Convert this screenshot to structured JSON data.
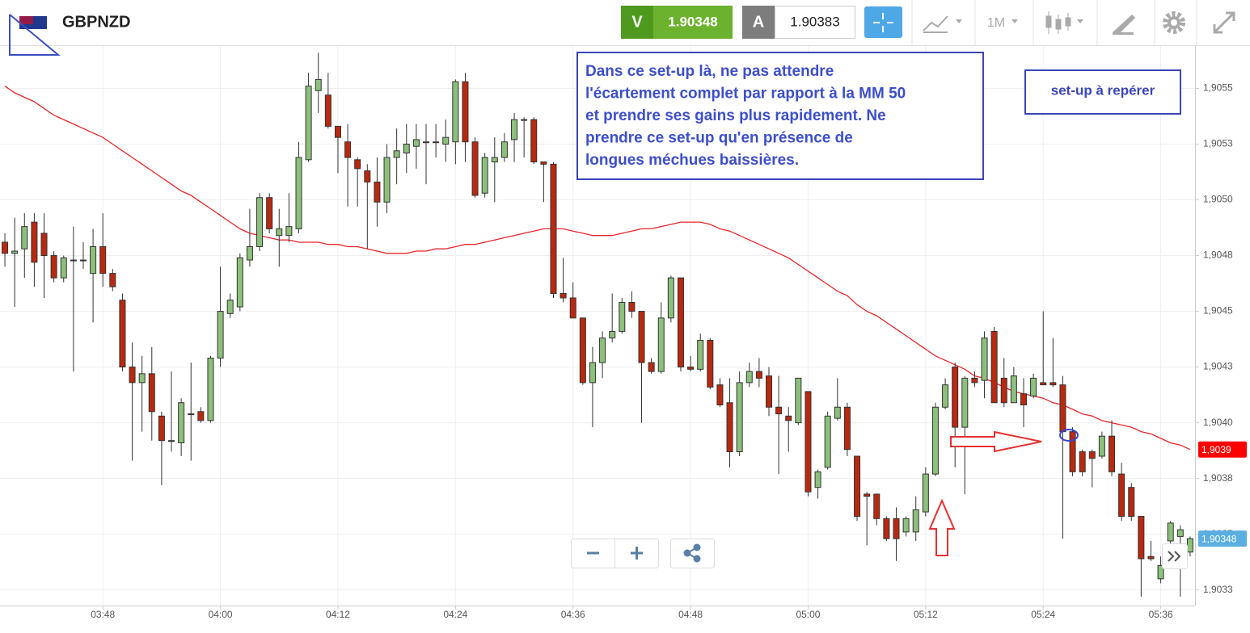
{
  "toolbar": {
    "symbol": "GBPNZD",
    "sell_label": "V",
    "sell_price": "1.90348",
    "buy_label": "A",
    "buy_price": "1.90383",
    "timeframe": "1M"
  },
  "annotations": {
    "note_lines": [
      "Dans ce set-up là, ne pas attendre",
      "l'écartement complet par rapport à la MM 50",
      "et prendre ses gains plus rapidement. Ne",
      "prendre ce set-up  qu'en présence de",
      "longues méchues baissières."
    ],
    "setup_label": "set-up à repérer"
  },
  "chart_data": {
    "type": "candlestick",
    "up_color": "#8cc07c",
    "down_color": "#b8290f",
    "grid": true,
    "x": [
      "03:38",
      "03:39",
      "03:40",
      "03:41",
      "03:42",
      "03:43",
      "03:44",
      "03:45",
      "03:46",
      "03:47",
      "03:48",
      "03:49",
      "03:50",
      "03:51",
      "03:52",
      "03:53",
      "03:54",
      "03:55",
      "03:56",
      "03:57",
      "03:58",
      "03:59",
      "04:00",
      "04:01",
      "04:02",
      "04:03",
      "04:04",
      "04:05",
      "04:06",
      "04:07",
      "04:08",
      "04:09",
      "04:10",
      "04:11",
      "04:12",
      "04:13",
      "04:14",
      "04:15",
      "04:16",
      "04:17",
      "04:18",
      "04:19",
      "04:20",
      "04:21",
      "04:22",
      "04:23",
      "04:24",
      "04:25",
      "04:26",
      "04:27",
      "04:28",
      "04:29",
      "04:30",
      "04:31",
      "04:32",
      "04:33",
      "04:34",
      "04:35",
      "04:36",
      "04:37",
      "04:38",
      "04:39",
      "04:40",
      "04:41",
      "04:42",
      "04:43",
      "04:44",
      "04:45",
      "04:46",
      "04:47",
      "04:48",
      "04:49",
      "04:50",
      "04:51",
      "04:52",
      "04:53",
      "04:54",
      "04:55",
      "04:56",
      "04:57",
      "04:58",
      "04:59",
      "05:00",
      "05:01",
      "05:02",
      "05:03",
      "05:04",
      "05:05",
      "05:06",
      "05:07",
      "05:08",
      "05:09",
      "05:10",
      "05:11",
      "05:12",
      "05:13",
      "05:14",
      "05:15",
      "05:16",
      "05:17",
      "05:18",
      "05:19",
      "05:20",
      "05:21",
      "05:22",
      "05:23",
      "05:24",
      "05:25",
      "05:26",
      "05:27",
      "05:28",
      "05:29",
      "05:30",
      "05:31",
      "05:32",
      "05:33",
      "05:34",
      "05:35",
      "05:36",
      "05:37",
      "05:38",
      "05:39"
    ],
    "xticks": [
      "03:48",
      "04:00",
      "04:12",
      "04:24",
      "04:36",
      "04:48",
      "05:00",
      "05:12",
      "05:24",
      "05:36"
    ],
    "ylim": [
      1.90318,
      1.90569
    ],
    "yticks": [
      {
        "value": 1.9055,
        "label": "1,9055"
      },
      {
        "value": 1.90525,
        "label": "1,9053"
      },
      {
        "value": 1.905,
        "label": "1,9050"
      },
      {
        "value": 1.90475,
        "label": "1,9048"
      },
      {
        "value": 1.9045,
        "label": "1,9045"
      },
      {
        "value": 1.90425,
        "label": "1,9043"
      },
      {
        "value": 1.904,
        "label": "1,9040"
      },
      {
        "value": 1.90375,
        "label": "1,9038"
      },
      {
        "value": 1.9035,
        "label": "1,9035"
      },
      {
        "value": 1.90325,
        "label": "1,9033"
      }
    ],
    "ohlc": [
      [
        1.90481,
        1.90485,
        1.9047,
        1.90476
      ],
      [
        1.90476,
        1.90492,
        1.90452,
        1.90477
      ],
      [
        1.90478,
        1.90494,
        1.90465,
        1.90488
      ],
      [
        1.9049,
        1.90494,
        1.90461,
        1.90472
      ],
      [
        1.90485,
        1.90494,
        1.90456,
        1.90475
      ],
      [
        1.90475,
        1.90477,
        1.90463,
        1.90465
      ],
      [
        1.90465,
        1.90475,
        1.90463,
        1.90474
      ],
      [
        1.90473,
        1.90488,
        1.90423,
        1.90473
      ],
      [
        1.90473,
        1.90481,
        1.90469,
        1.90473
      ],
      [
        1.90467,
        1.90487,
        1.90445,
        1.90479
      ],
      [
        1.90479,
        1.90494,
        1.90461,
        1.90467
      ],
      [
        1.90467,
        1.90469,
        1.90459,
        1.90461
      ],
      [
        1.90455,
        1.90458,
        1.90423,
        1.90425
      ],
      [
        1.90425,
        1.90436,
        1.90383,
        1.90418
      ],
      [
        1.90418,
        1.9043,
        1.90396,
        1.90422
      ],
      [
        1.90422,
        1.90434,
        1.90392,
        1.90405
      ],
      [
        1.90403,
        1.90405,
        1.90372,
        1.90392
      ],
      [
        1.90392,
        1.90423,
        1.90387,
        1.90392
      ],
      [
        1.90391,
        1.90411,
        1.90385,
        1.90409
      ],
      [
        1.90404,
        1.90427,
        1.90383,
        1.90404
      ],
      [
        1.90405,
        1.90407,
        1.904,
        1.90401
      ],
      [
        1.90401,
        1.9043,
        1.904,
        1.90429
      ],
      [
        1.90429,
        1.9047,
        1.90425,
        1.9045
      ],
      [
        1.90449,
        1.90458,
        1.90447,
        1.90455
      ],
      [
        1.90452,
        1.90476,
        1.9045,
        1.90474
      ],
      [
        1.90473,
        1.90496,
        1.9047,
        1.90479
      ],
      [
        1.90479,
        1.90503,
        1.90477,
        1.90501
      ],
      [
        1.90501,
        1.90503,
        1.90485,
        1.90487
      ],
      [
        1.90484,
        1.90496,
        1.9047,
        1.90487
      ],
      [
        1.90484,
        1.90503,
        1.90481,
        1.90488
      ],
      [
        1.90487,
        1.90526,
        1.90485,
        1.90519
      ],
      [
        1.90518,
        1.90557,
        1.90517,
        1.90551
      ],
      [
        1.90549,
        1.90566,
        1.90539,
        1.90554
      ],
      [
        1.90547,
        1.90557,
        1.90532,
        1.90533
      ],
      [
        1.90533,
        1.90533,
        1.90512,
        1.90528
      ],
      [
        1.90526,
        1.90534,
        1.90497,
        1.90519
      ],
      [
        1.90518,
        1.90519,
        1.90497,
        1.90514
      ],
      [
        1.90513,
        1.90516,
        1.90478,
        1.90508
      ],
      [
        1.90508,
        1.90519,
        1.90488,
        1.90499
      ],
      [
        1.90499,
        1.90525,
        1.90494,
        1.90519
      ],
      [
        1.90519,
        1.90532,
        1.90507,
        1.90522
      ],
      [
        1.90521,
        1.90534,
        1.90512,
        1.90525
      ],
      [
        1.90524,
        1.90534,
        1.90514,
        1.90527
      ],
      [
        1.90526,
        1.90534,
        1.90507,
        1.90526
      ],
      [
        1.90526,
        1.90534,
        1.90519,
        1.90526
      ],
      [
        1.90525,
        1.90536,
        1.90517,
        1.90528
      ],
      [
        1.90526,
        1.90554,
        1.90516,
        1.90553
      ],
      [
        1.90553,
        1.90557,
        1.90517,
        1.90526
      ],
      [
        1.90526,
        1.90528,
        1.90501,
        1.90502
      ],
      [
        1.90503,
        1.90521,
        1.90501,
        1.90519
      ],
      [
        1.90517,
        1.90528,
        1.90499,
        1.90519
      ],
      [
        1.90519,
        1.9053,
        1.90517,
        1.90526
      ],
      [
        1.90527,
        1.90539,
        1.90517,
        1.90536
      ],
      [
        1.90536,
        1.90537,
        1.90519,
        1.90536
      ],
      [
        1.90536,
        1.90537,
        1.90516,
        1.90517
      ],
      [
        1.90517,
        1.90517,
        1.90499,
        1.90516
      ],
      [
        1.90516,
        1.90517,
        1.90456,
        1.90458
      ],
      [
        1.90458,
        1.90474,
        1.90454,
        1.90456
      ],
      [
        1.90456,
        1.90463,
        1.90447,
        1.90447
      ],
      [
        1.90447,
        1.90447,
        1.90417,
        1.90418
      ],
      [
        1.90418,
        1.90434,
        1.90398,
        1.90427
      ],
      [
        1.90427,
        1.90441,
        1.9042,
        1.90438
      ],
      [
        1.90438,
        1.90458,
        1.90436,
        1.90441
      ],
      [
        1.90441,
        1.90456,
        1.9044,
        1.90454
      ],
      [
        1.90454,
        1.90459,
        1.90447,
        1.9045
      ],
      [
        1.9045,
        1.9045,
        1.904,
        1.90427
      ],
      [
        1.90427,
        1.90429,
        1.90422,
        1.90423
      ],
      [
        1.90423,
        1.90454,
        1.90422,
        1.90447
      ],
      [
        1.90447,
        1.90466,
        1.90445,
        1.90465
      ],
      [
        1.90465,
        1.90465,
        1.90423,
        1.90425
      ],
      [
        1.90425,
        1.9043,
        1.90423,
        1.90424
      ],
      [
        1.90424,
        1.9044,
        1.90423,
        1.90437
      ],
      [
        1.90437,
        1.90438,
        1.90415,
        1.90416
      ],
      [
        1.90417,
        1.9042,
        1.90407,
        1.90408
      ],
      [
        1.90409,
        1.9042,
        1.9038,
        1.90387
      ],
      [
        1.90387,
        1.90423,
        1.90385,
        1.90418
      ],
      [
        1.90418,
        1.90427,
        1.90416,
        1.90423
      ],
      [
        1.90423,
        1.90429,
        1.90416,
        1.9042
      ],
      [
        1.90421,
        1.90425,
        1.90403,
        1.90407
      ],
      [
        1.90407,
        1.90421,
        1.90377,
        1.90404
      ],
      [
        1.90403,
        1.90407,
        1.90387,
        1.90401
      ],
      [
        1.904,
        1.9042,
        1.90399,
        1.9042
      ],
      [
        1.90414,
        1.90414,
        1.90367,
        1.90369
      ],
      [
        1.90371,
        1.90379,
        1.90366,
        1.90378
      ],
      [
        1.9038,
        1.90405,
        1.90379,
        1.90403
      ],
      [
        1.90402,
        1.9042,
        1.90401,
        1.90407
      ],
      [
        1.90407,
        1.90409,
        1.90385,
        1.90388
      ],
      [
        1.90385,
        1.90385,
        1.90356,
        1.90358
      ],
      [
        1.90368,
        1.90369,
        1.90345,
        1.90367
      ],
      [
        1.90368,
        1.90368,
        1.90354,
        1.90357
      ],
      [
        1.90357,
        1.90358,
        1.90347,
        1.90348
      ],
      [
        1.90357,
        1.90362,
        1.90338,
        1.90348
      ],
      [
        1.90351,
        1.90358,
        1.90349,
        1.90357
      ],
      [
        1.90351,
        1.90367,
        1.90347,
        1.90361
      ],
      [
        1.9036,
        1.9038,
        1.90358,
        1.90377
      ],
      [
        1.90377,
        1.90409,
        1.90376,
        1.90407
      ],
      [
        1.90407,
        1.9042,
        1.90406,
        1.90417
      ],
      [
        1.90425,
        1.90427,
        1.9038,
        1.90398
      ],
      [
        1.90398,
        1.90421,
        1.90368,
        1.9042
      ],
      [
        1.9042,
        1.90423,
        1.90416,
        1.90418
      ],
      [
        1.90419,
        1.90441,
        1.90411,
        1.90438
      ],
      [
        1.90441,
        1.90443,
        1.90409,
        1.90409
      ],
      [
        1.9042,
        1.90429,
        1.90407,
        1.90409
      ],
      [
        1.90409,
        1.90425,
        1.90409,
        1.90421
      ],
      [
        1.90413,
        1.9042,
        1.90398,
        1.90408
      ],
      [
        1.90412,
        1.90422,
        1.90411,
        1.9042
      ],
      [
        1.90418,
        1.9045,
        1.90417,
        1.90417
      ],
      [
        1.90418,
        1.90438,
        1.90416,
        1.90417
      ],
      [
        1.90417,
        1.90421,
        1.90348,
        1.90396
      ],
      [
        1.90396,
        1.90398,
        1.90376,
        1.90378
      ],
      [
        1.90387,
        1.90388,
        1.90376,
        1.90378
      ],
      [
        1.90387,
        1.90388,
        1.90371,
        1.90384
      ],
      [
        1.90385,
        1.90396,
        1.90384,
        1.90394
      ],
      [
        1.90394,
        1.90401,
        1.90376,
        1.90378
      ],
      [
        1.90377,
        1.90382,
        1.90356,
        1.90358
      ],
      [
        1.90371,
        1.90373,
        1.90356,
        1.90358
      ],
      [
        1.90358,
        1.90358,
        1.90322,
        1.90339
      ],
      [
        1.9034,
        1.90347,
        1.90338,
        1.90339
      ],
      [
        1.9033,
        1.9034,
        1.90328,
        1.90336
      ],
      [
        1.90347,
        1.90356,
        1.90336,
        1.90355
      ],
      [
        1.90349,
        1.90354,
        1.90322,
        1.90352
      ],
      [
        1.90342,
        1.90349,
        1.9034,
        1.90348
      ]
    ],
    "series": [
      {
        "color": "#e8262b",
        "values": [
          1.90551,
          1.90548,
          1.90546,
          1.90544,
          1.90541,
          1.90538,
          1.90536,
          1.90534,
          1.90532,
          1.9053,
          1.90528,
          1.90525,
          1.90522,
          1.90519,
          1.90516,
          1.90513,
          1.9051,
          1.90507,
          1.90504,
          1.90502,
          1.90499,
          1.90496,
          1.90493,
          1.9049,
          1.90487,
          1.90485,
          1.90484,
          1.90483,
          1.90482,
          1.90482,
          1.90481,
          1.90481,
          1.90481,
          1.9048,
          1.9048,
          1.90479,
          1.90479,
          1.90478,
          1.90477,
          1.90476,
          1.90476,
          1.90476,
          1.90477,
          1.90477,
          1.90478,
          1.90478,
          1.90479,
          1.9048,
          1.9048,
          1.90481,
          1.90482,
          1.90483,
          1.90484,
          1.90485,
          1.90486,
          1.90487,
          1.90487,
          1.90487,
          1.90486,
          1.90485,
          1.90484,
          1.90484,
          1.90484,
          1.90485,
          1.90486,
          1.90487,
          1.90487,
          1.90488,
          1.90489,
          1.9049,
          1.9049,
          1.9049,
          1.90489,
          1.90487,
          1.90486,
          1.90484,
          1.90482,
          1.9048,
          1.90478,
          1.90476,
          1.90474,
          1.90471,
          1.90468,
          1.90465,
          1.90462,
          1.90459,
          1.90457,
          1.90453,
          1.9045,
          1.90448,
          1.90445,
          1.90442,
          1.90439,
          1.90436,
          1.90433,
          1.9043,
          1.90428,
          1.90426,
          1.90424,
          1.90421,
          1.9042,
          1.90418,
          1.90416,
          1.90414,
          1.90413,
          1.90412,
          1.90411,
          1.90409,
          1.90408,
          1.90406,
          1.90404,
          1.90403,
          1.90401,
          1.904,
          1.90399,
          1.90398,
          1.90396,
          1.90395,
          1.90393,
          1.90391,
          1.9039,
          1.90388
        ]
      }
    ],
    "price_tags": [
      {
        "value": 1.90388,
        "label": "1,9039",
        "color": "#ff0000"
      },
      {
        "value": 1.90348,
        "label": "1,90348",
        "color": "#5aaee0"
      }
    ]
  }
}
